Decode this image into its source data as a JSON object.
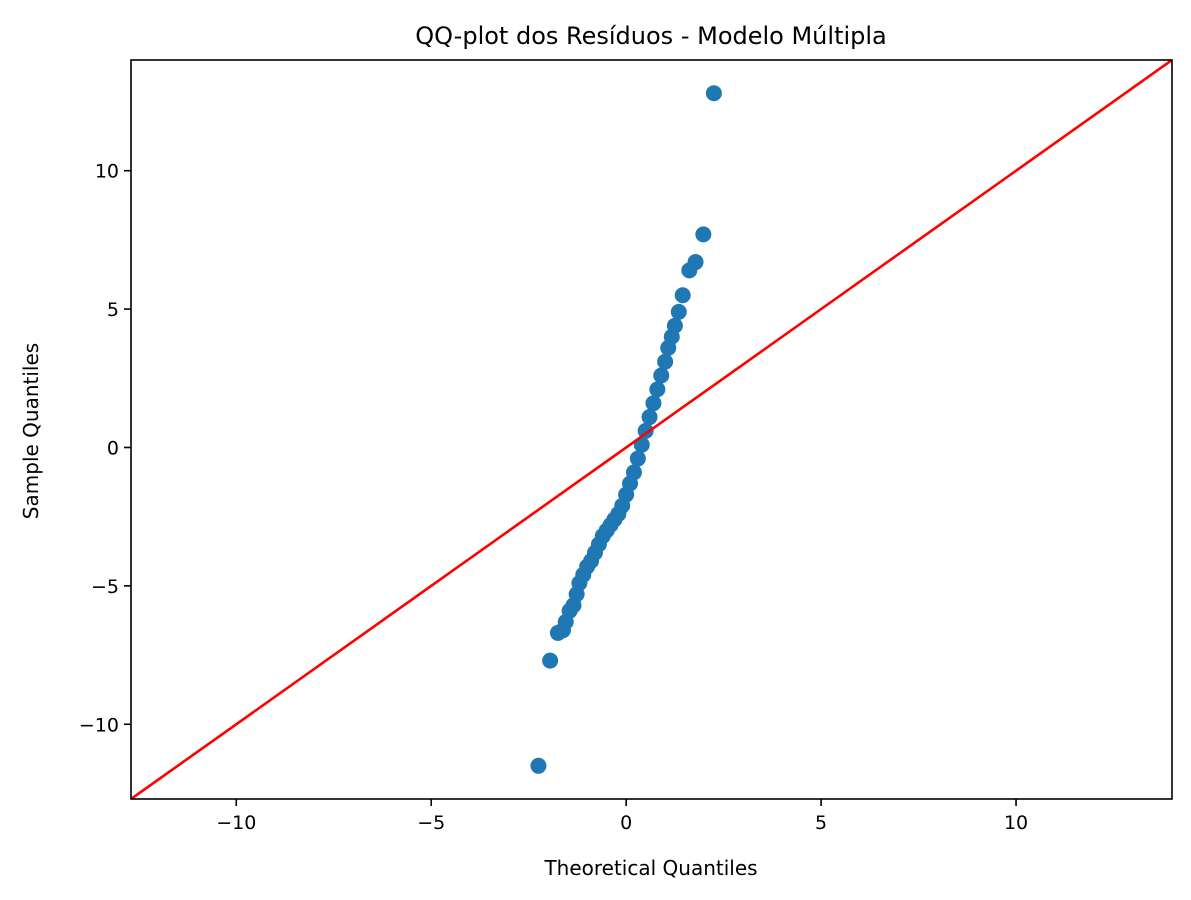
{
  "chart_data": {
    "type": "scatter",
    "title": "QQ-plot dos Resíduos - Modelo Múltipla",
    "xlabel": "Theoretical Quantiles",
    "ylabel": "Sample Quantiles",
    "xlim": [
      -12.7,
      14.0
    ],
    "ylim": [
      -12.7,
      14.0
    ],
    "xticks": [
      -10,
      -5,
      0,
      5,
      10
    ],
    "xtick_labels": [
      "−10",
      "−5",
      "0",
      "5",
      "10"
    ],
    "yticks": [
      -10,
      -5,
      0,
      5,
      10
    ],
    "ytick_labels": [
      "−10",
      "−5",
      "0",
      "5",
      "10"
    ],
    "grid": false,
    "colors": {
      "points": "#1f77b4",
      "reference_line": "#ff0000",
      "axes": "#000000"
    },
    "reference_line": {
      "slope": 1,
      "intercept": 0
    },
    "series": [
      {
        "x": [
          -2.25,
          -1.95,
          -1.75,
          -1.62,
          -1.55,
          -1.45,
          -1.35,
          -1.27,
          -1.2,
          -1.1,
          -1.0,
          -0.9,
          -0.8,
          -0.7,
          -0.6,
          -0.5,
          -0.4,
          -0.3,
          -0.2,
          -0.1,
          0.0,
          0.1,
          0.2,
          0.3,
          0.4,
          0.5,
          0.6,
          0.7,
          0.8,
          0.9,
          1.0,
          1.08,
          1.17,
          1.25,
          1.35,
          1.45,
          1.62,
          1.78,
          1.98,
          2.25
        ],
        "y": [
          -11.5,
          -7.7,
          -6.7,
          -6.6,
          -6.3,
          -5.9,
          -5.7,
          -5.3,
          -4.9,
          -4.6,
          -4.3,
          -4.1,
          -3.8,
          -3.5,
          -3.2,
          -3.0,
          -2.8,
          -2.6,
          -2.4,
          -2.1,
          -1.7,
          -1.3,
          -0.9,
          -0.4,
          0.1,
          0.6,
          1.1,
          1.6,
          2.1,
          2.6,
          3.1,
          3.6,
          4.0,
          4.4,
          4.9,
          5.5,
          6.4,
          6.7,
          7.7,
          12.8
        ]
      }
    ]
  }
}
